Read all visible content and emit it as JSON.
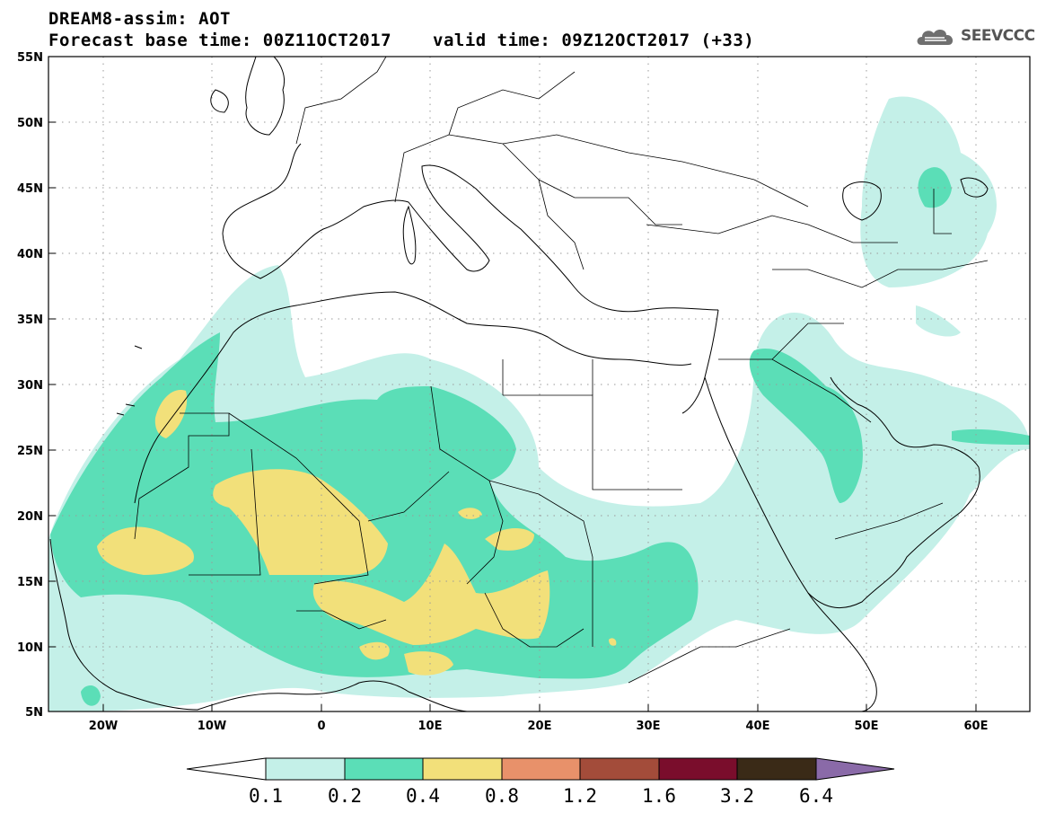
{
  "header": {
    "title": "DREAM8-assim: AOT",
    "base_time": "Forecast base time: 00Z11OCT2017",
    "valid_time": "valid time: 09Z12OCT2017 (+33)"
  },
  "logo": {
    "text": "SEEVCCC",
    "icon": "cloud-icon"
  },
  "map": {
    "lon_range": [
      -25,
      65
    ],
    "lat_range": [
      5,
      55
    ],
    "lat_labels": [
      "55N",
      "50N",
      "45N",
      "40N",
      "35N",
      "30N",
      "25N",
      "20N",
      "15N",
      "10N",
      "5N"
    ],
    "lon_labels": [
      "20W",
      "10W",
      "0",
      "10E",
      "20E",
      "30E",
      "40E",
      "50E",
      "60E"
    ],
    "gridlines": true
  },
  "colorbar": {
    "thresholds": [
      "0.1",
      "0.2",
      "0.4",
      "0.8",
      "1.2",
      "1.6",
      "3.2",
      "6.4"
    ],
    "colors": [
      "#ffffff",
      "#c4f0e8",
      "#5bdeb7",
      "#f2e07a",
      "#e8916a",
      "#a34c3a",
      "#7a0d2c",
      "#3a2a17",
      "#8a6aa8"
    ]
  }
}
